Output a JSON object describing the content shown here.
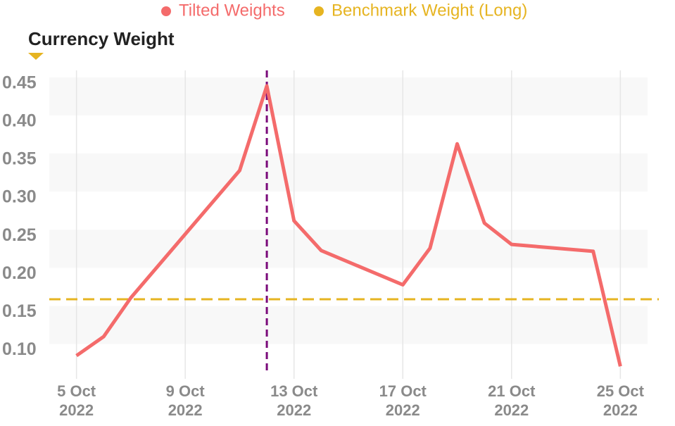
{
  "chart_data": {
    "type": "line",
    "y_axis_title": "Currency Weight",
    "x": [
      "2022-10-05",
      "2022-10-06",
      "2022-10-07",
      "2022-10-11",
      "2022-10-12",
      "2022-10-13",
      "2022-10-14",
      "2022-10-17",
      "2022-10-18",
      "2022-10-19",
      "2022-10-20",
      "2022-10-21",
      "2022-10-24",
      "2022-10-25"
    ],
    "series": [
      {
        "name": "Tilted Weights",
        "color": "#f46b6b",
        "values": [
          0.093,
          0.118,
          0.169,
          0.336,
          0.447,
          0.27,
          0.231,
          0.186,
          0.234,
          0.371,
          0.267,
          0.239,
          0.23,
          0.079
        ]
      }
    ],
    "benchmark": {
      "name": "Benchmark Weight (Long)",
      "color": "#e6b421",
      "value": 0.167
    },
    "marker_x": "2022-10-12",
    "marker_color": "#7a0a7a",
    "xlim": [
      "2022-10-04",
      "2022-10-26"
    ],
    "xticks": [
      {
        "value": "2022-10-05",
        "label": "5 Oct 2022"
      },
      {
        "value": "2022-10-09",
        "label": "9 Oct 2022"
      },
      {
        "value": "2022-10-13",
        "label": "13 Oct 2022"
      },
      {
        "value": "2022-10-17",
        "label": "17 Oct 2022"
      },
      {
        "value": "2022-10-21",
        "label": "21 Oct 2022"
      },
      {
        "value": "2022-10-25",
        "label": "25 Oct 2022"
      }
    ],
    "ylim": [
      0.07,
      0.46
    ],
    "yticks": [
      {
        "value": 0.1,
        "label": "0.10"
      },
      {
        "value": 0.15,
        "label": "0.15"
      },
      {
        "value": 0.2,
        "label": "0.20"
      },
      {
        "value": 0.25,
        "label": "0.25"
      },
      {
        "value": 0.3,
        "label": "0.30"
      },
      {
        "value": 0.35,
        "label": "0.35"
      },
      {
        "value": 0.4,
        "label": "0.40"
      },
      {
        "value": 0.45,
        "label": "0.45"
      }
    ],
    "grid": true
  }
}
